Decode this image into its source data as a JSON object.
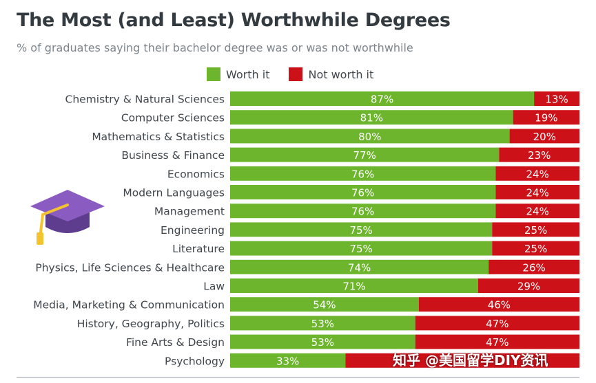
{
  "header": {
    "title": "The Most (and Least) Worthwhile Degrees",
    "subtitle": "% of graduates saying their bachelor degree was or was not worthwhile"
  },
  "colors": {
    "worth": "#6cb52d",
    "not_worth": "#cc1118",
    "cap": "#8a5cc2",
    "tassel": "#f4c430"
  },
  "icons": [
    "graduation-cap-icon"
  ],
  "watermark": "知乎 @美国留学DIY资讯",
  "chart_data": {
    "type": "bar",
    "orientation": "horizontal",
    "stacked": true,
    "title": "The Most (and Least) Worthwhile Degrees",
    "subtitle": "% of graduates saying their bachelor degree was or was not worthwhile",
    "legend_position": "top",
    "xlim": [
      0,
      100
    ],
    "categories": [
      "Chemistry & Natural Sciences",
      "Computer Sciences",
      "Mathematics & Statistics",
      "Business & Finance",
      "Economics",
      "Modern Languages",
      "Management",
      "Engineering",
      "Literature",
      "Physics, Life Sciences & Healthcare",
      "Law",
      "Media, Marketing & Communication",
      "History, Geography, Politics",
      "Fine Arts & Design",
      "Psychology"
    ],
    "series": [
      {
        "name": "Worth it",
        "values": [
          87,
          81,
          80,
          77,
          76,
          76,
          76,
          75,
          75,
          74,
          71,
          54,
          53,
          53,
          33
        ],
        "labels": [
          "87%",
          "81%",
          "80%",
          "77%",
          "76%",
          "76%",
          "76%",
          "75%",
          "75%",
          "74%",
          "71%",
          "54%",
          "53%",
          "53%",
          "33%"
        ]
      },
      {
        "name": "Not worth it",
        "values": [
          13,
          19,
          20,
          23,
          24,
          24,
          24,
          25,
          25,
          26,
          29,
          46,
          47,
          47,
          67
        ],
        "labels": [
          "13%",
          "19%",
          "20%",
          "23%",
          "24%",
          "24%",
          "24%",
          "25%",
          "25%",
          "26%",
          "29%",
          "46%",
          "47%",
          "47%",
          ""
        ]
      }
    ]
  }
}
